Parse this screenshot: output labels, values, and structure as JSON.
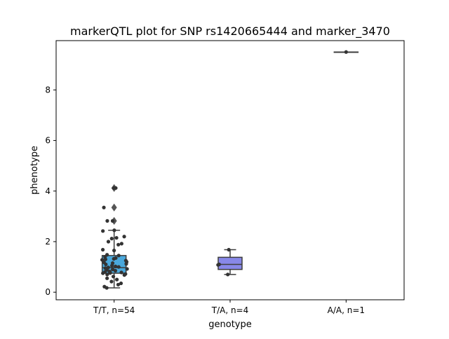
{
  "chart_data": {
    "type": "box",
    "title": "markerQTL plot for SNP rs1420665444 and marker_3470",
    "xlabel": "genotype",
    "ylabel": "phenotype",
    "ylim": [
      -0.3,
      9.95
    ],
    "yticks": [
      0,
      2,
      4,
      6,
      8
    ],
    "ytick_labels": [
      "0",
      "2",
      "4",
      "6",
      "8"
    ],
    "categories": [
      "T/T, n=54",
      "T/A, n=4",
      "A/A, n=1"
    ],
    "grid": false,
    "legend": "none",
    "boxes": [
      {
        "category": "T/T, n=54",
        "color": "#4aa8dc",
        "whisker_low": 0.17,
        "q1": 0.75,
        "median": 0.97,
        "q3": 1.45,
        "whisker_high": 2.45,
        "outliers": [
          2.82,
          3.35,
          4.12
        ]
      },
      {
        "category": "T/A, n=4",
        "color": "#8888e8",
        "whisker_low": 0.7,
        "q1": 0.9,
        "median": 1.1,
        "q3": 1.38,
        "whisker_high": 1.68,
        "outliers": []
      },
      {
        "category": "A/A, n=1",
        "color": "#c8a0e0",
        "whisker_low": 9.5,
        "q1": 9.5,
        "median": 9.5,
        "q3": 9.5,
        "whisker_high": 9.5,
        "outliers": []
      }
    ],
    "points": [
      {
        "category": "T/T, n=54",
        "values": [
          4.12,
          4.12,
          3.35,
          2.82,
          2.82,
          2.45,
          2.42,
          2.2,
          2.15,
          2.12,
          2.0,
          1.92,
          1.88,
          1.68,
          1.65,
          1.48,
          1.45,
          1.4,
          1.35,
          1.32,
          1.3,
          1.28,
          1.25,
          1.2,
          1.18,
          1.15,
          1.12,
          1.1,
          1.05,
          1.02,
          1.0,
          0.98,
          0.95,
          0.92,
          0.9,
          0.88,
          0.85,
          0.82,
          0.8,
          0.78,
          0.78,
          0.76,
          0.75,
          0.72,
          0.7,
          0.68,
          0.62,
          0.55,
          0.5,
          0.42,
          0.35,
          0.3,
          0.22,
          0.17
        ]
      },
      {
        "category": "T/A, n=4",
        "values": [
          1.68,
          1.1,
          1.08,
          0.7
        ]
      },
      {
        "category": "A/A, n=1",
        "values": [
          9.5
        ]
      }
    ]
  }
}
